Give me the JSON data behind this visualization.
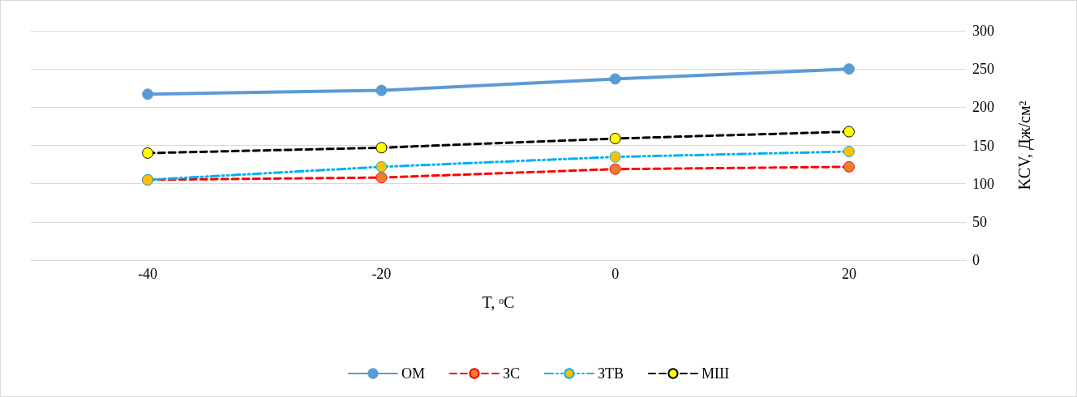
{
  "chart_data": {
    "type": "line",
    "xlabel": "T, ᵒC",
    "ylabel": "KCV, Дж/см²",
    "categories": [
      "-40",
      "-20",
      "0",
      "20"
    ],
    "series": [
      {
        "name": "ОМ",
        "color": "#5b9bd5",
        "colors": [
          "#5b9bd5",
          "#5b9bd5",
          "#5b9bd5",
          "#5b9bd5"
        ],
        "line_style": "solid",
        "values": [
          217,
          222,
          237,
          250
        ]
      },
      {
        "name": "ЗС",
        "color": "#ff0000",
        "colors": [
          "#ed7d31",
          "#ed7d31",
          "#ed7d31",
          "#ed7d31"
        ],
        "line_style": "dashed",
        "values": [
          105,
          108,
          119,
          122
        ]
      },
      {
        "name": "ЗТВ",
        "color": "#00b0f0",
        "colors": [
          "#ffc000",
          "#ffc000",
          "#ffc000",
          "#ffc000"
        ],
        "line_style": "dashdot",
        "values": [
          105,
          122,
          135,
          142
        ]
      },
      {
        "name": "МШ",
        "color": "#000000",
        "colors": [
          "#ffff00",
          "#ffff00",
          "#ffff00",
          "#ffff00"
        ],
        "line_style": "dashed",
        "values": [
          140,
          147,
          159,
          168
        ]
      }
    ],
    "ylim": [
      0,
      300
    ],
    "yticks": [
      0,
      50,
      100,
      150,
      200,
      250,
      300
    ],
    "grid": "y",
    "legend": "bottom",
    "marker": "circle"
  }
}
